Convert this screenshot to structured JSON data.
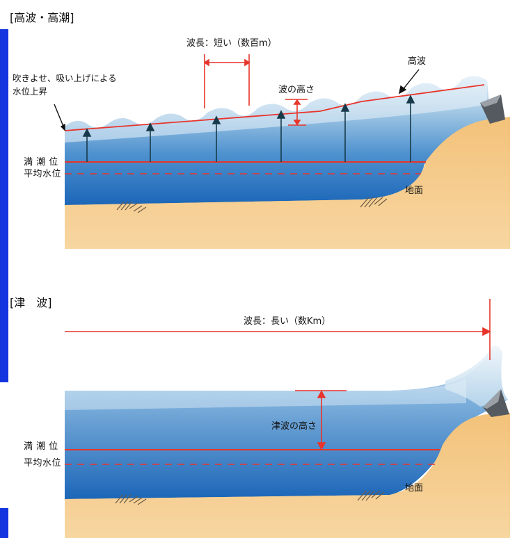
{
  "highwave": {
    "title": "[高波・高潮]",
    "wavelength": "波長：短い（数百m）",
    "surge_line1": "吹きよせ、吸い上げによる",
    "surge_line2": "水位上昇",
    "label_highwave": "高波",
    "wave_height": "波の高さ",
    "high_tide": "満 潮 位",
    "mean_level": "平均水位",
    "ground": "地面"
  },
  "tsunami": {
    "title": "[津　波]",
    "wavelength": "波長：長い（数Km）",
    "tsunami_height": "津波の高さ",
    "high_tide": "満 潮 位",
    "mean_level": "平均水位",
    "ground": "地面"
  },
  "colors": {
    "accent_bar": "#1434e0",
    "line_red": "#e8342a",
    "sea_top": "#cfe4f2",
    "sea_deep": "#1f6fbf",
    "sand": "#f0bd72"
  }
}
